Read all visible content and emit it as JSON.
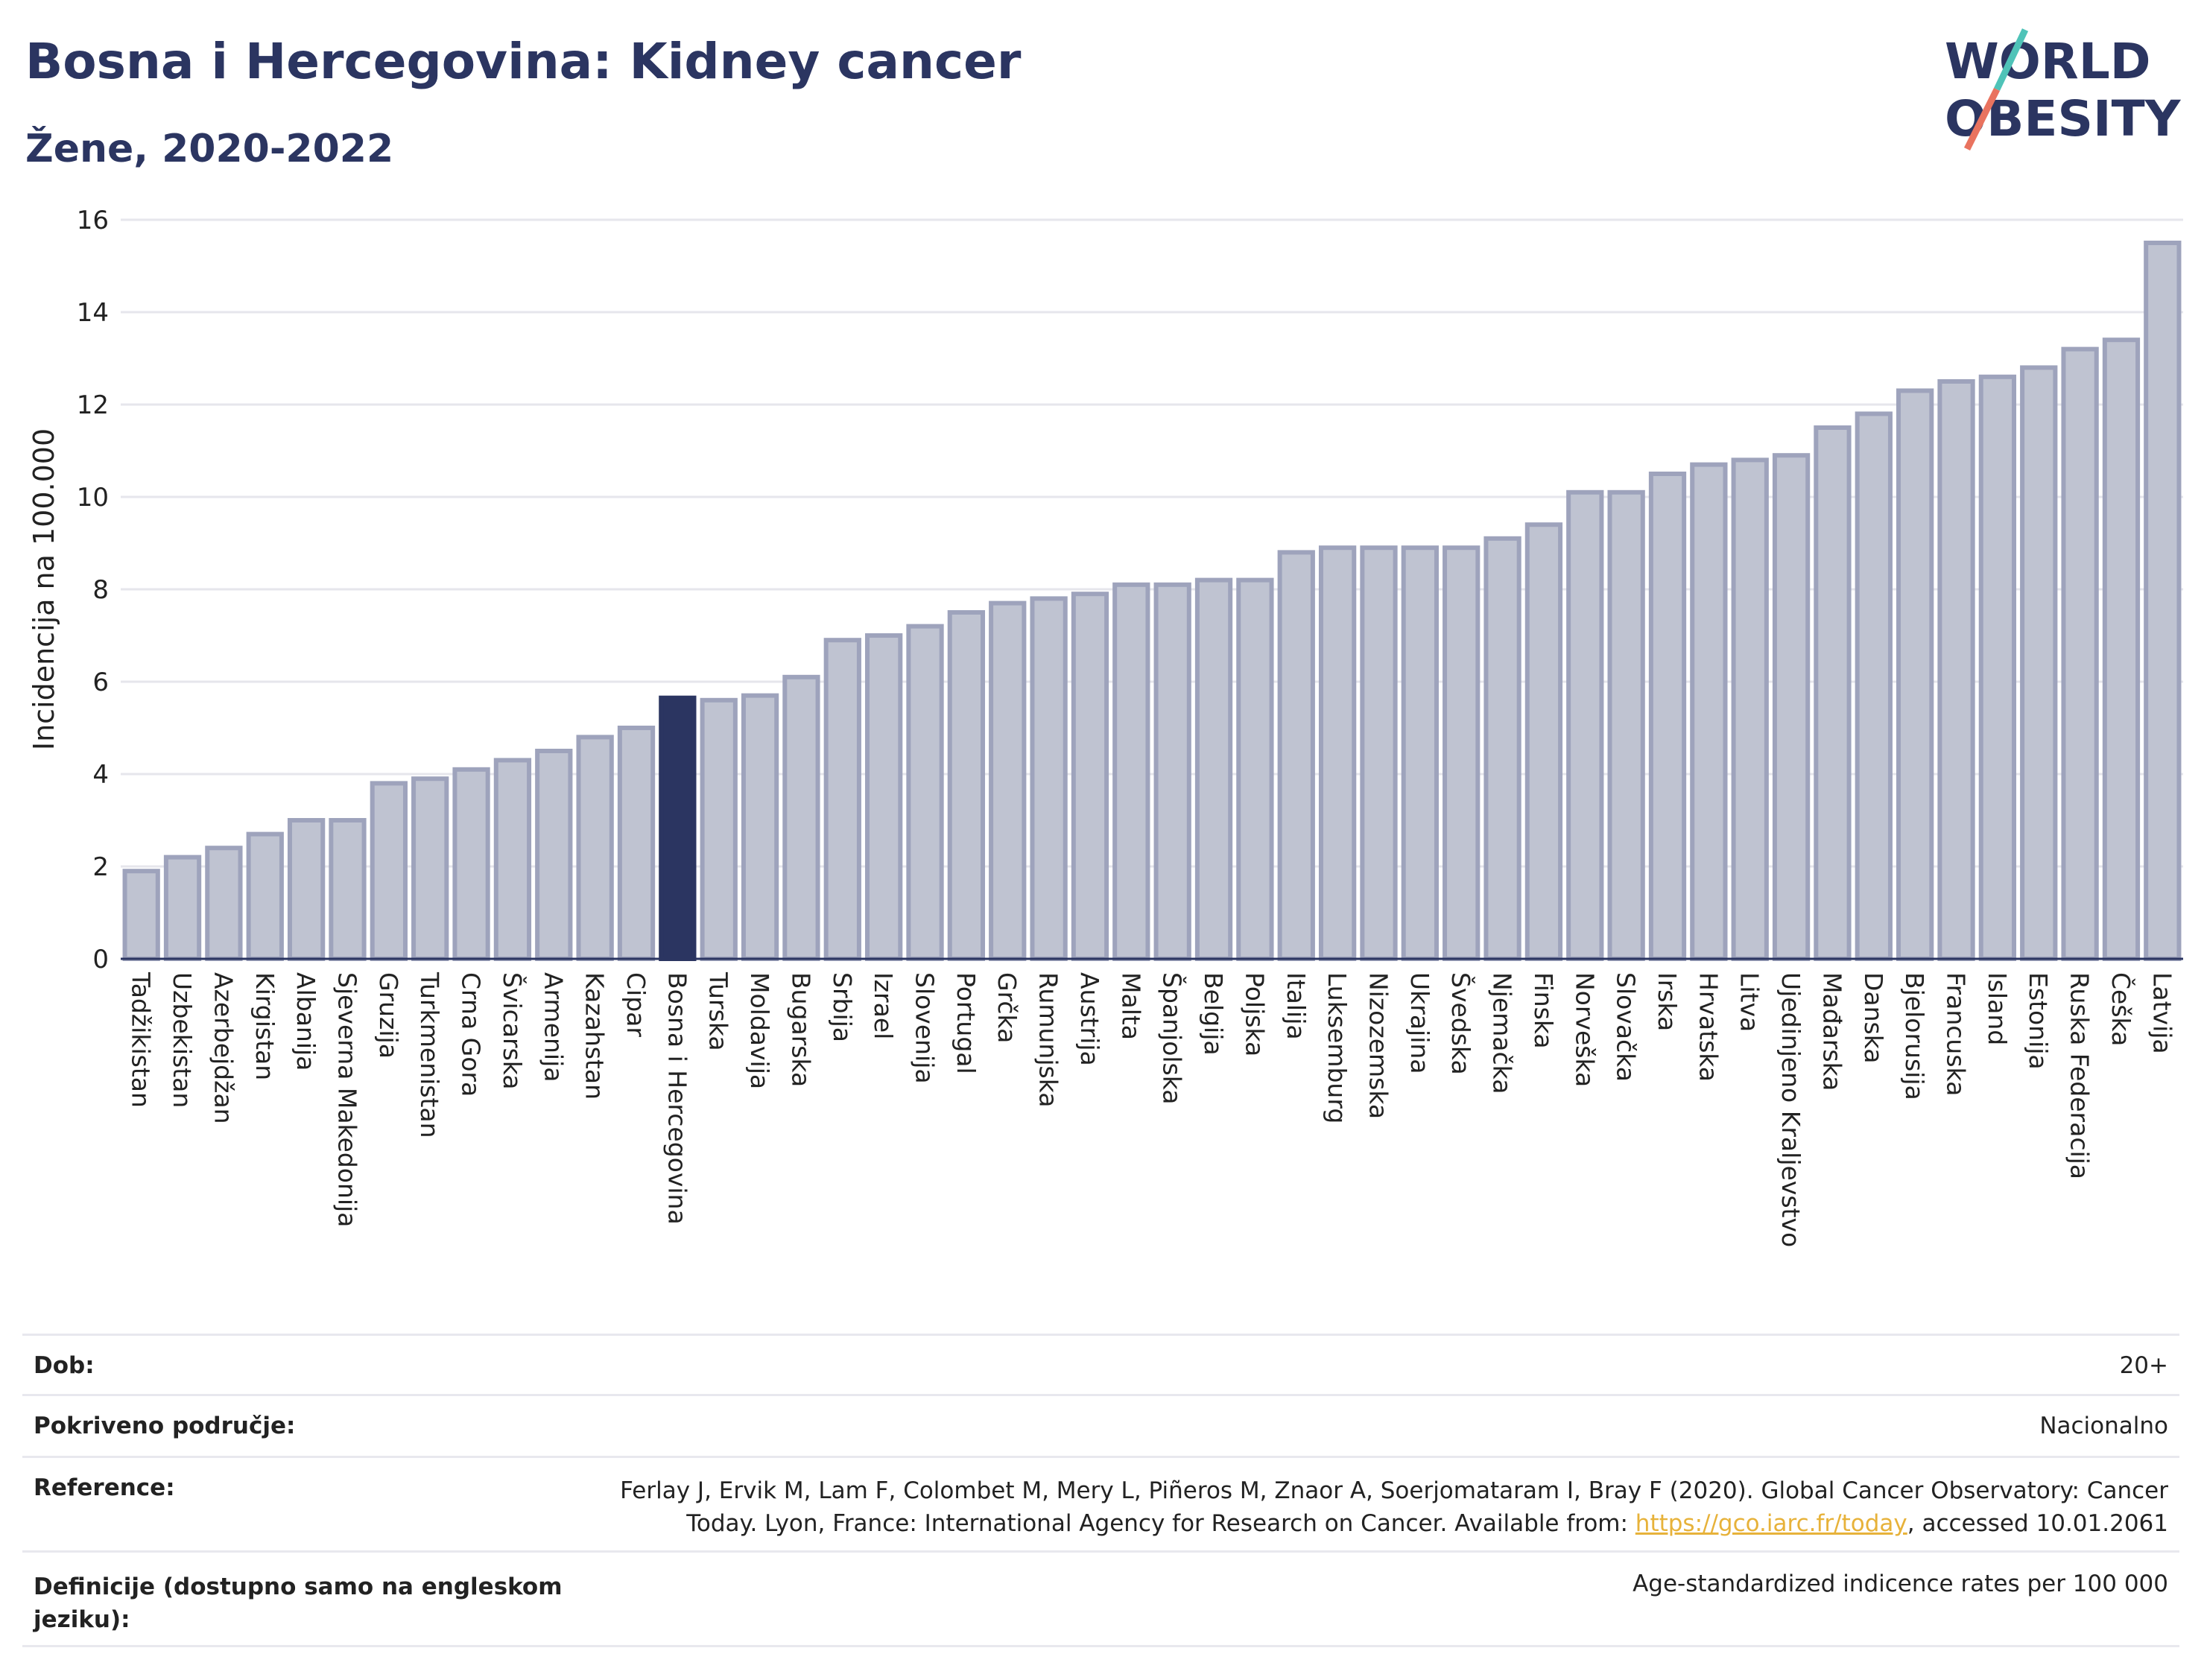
{
  "header": {
    "title": "Bosna i Hercegovina: Kidney cancer",
    "subtitle": "Žene, 2020-2022"
  },
  "logo": {
    "line1": "WORLD",
    "line2": "OBESITY",
    "accent_colors": [
      "#4fc3b8",
      "#e9735f"
    ]
  },
  "colors": {
    "bar": "#bfc3d1",
    "bar_border": "#9ea3bc",
    "highlight": "#2b3561",
    "grid": "#e6e6ec"
  },
  "chart_data": {
    "type": "bar",
    "title": "Bosna i Hercegovina: Kidney cancer",
    "subtitle": "Žene, 2020-2022",
    "xlabel": "",
    "ylabel": "Incidencija na 100.000",
    "ylim": [
      0,
      16
    ],
    "yticks": [
      0,
      2,
      4,
      6,
      8,
      10,
      12,
      14,
      16
    ],
    "grid": true,
    "highlight": "Bosna i Hercegovina",
    "categories": [
      "Tadžikistan",
      "Uzbekistan",
      "Azerbejdžan",
      "Kirgistan",
      "Albanija",
      "Sjeverna Makedonija",
      "Gruzija",
      "Turkmenistan",
      "Crna Gora",
      "Švicarska",
      "Armenija",
      "Kazahstan",
      "Cipar",
      "Bosna i Hercegovina",
      "Turska",
      "Moldavija",
      "Bugarska",
      "Srbija",
      "Izrael",
      "Slovenija",
      "Portugal",
      "Grčka",
      "Rumunjska",
      "Austrija",
      "Malta",
      "Španjolska",
      "Belgija",
      "Poljska",
      "Italija",
      "Luksemburg",
      "Nizozemska",
      "Ukrajina",
      "Švedska",
      "Njemačka",
      "Finska",
      "Norveška",
      "Slovačka",
      "Irska",
      "Hrvatska",
      "Litva",
      "Ujedinjeno Kraljevstvo",
      "Mađarska",
      "Danska",
      "Bjelorusija",
      "Francuska",
      "Island",
      "Estonija",
      "Ruska Federacija",
      "Češka",
      "Latvija"
    ],
    "values": [
      1.9,
      2.2,
      2.4,
      2.7,
      3.0,
      3.0,
      3.8,
      3.9,
      4.1,
      4.3,
      4.5,
      4.8,
      5.0,
      5.65,
      5.6,
      5.7,
      6.1,
      6.9,
      7.0,
      7.2,
      7.5,
      7.7,
      7.8,
      7.9,
      8.1,
      8.1,
      8.2,
      8.2,
      8.8,
      8.9,
      8.9,
      8.9,
      8.9,
      9.1,
      9.4,
      10.1,
      10.1,
      10.5,
      10.7,
      10.8,
      10.9,
      11.5,
      11.8,
      12.3,
      12.5,
      12.6,
      12.8,
      13.2,
      13.4,
      15.5
    ]
  },
  "info": [
    {
      "label": "Dob:",
      "value": "20+"
    },
    {
      "label": "Pokriveno područje:",
      "value": "Nacionalno"
    },
    {
      "label": "Reference:",
      "value_pre": "Ferlay J, Ervik M, Lam F, Colombet M, Mery L, Piñeros M, Znaor A, Soerjomataram I, Bray F (2020). Global Cancer Observatory: Cancer Today. Lyon, France: International Agency for Research on Cancer. Available from: ",
      "link": "https://gco.iarc.fr/today",
      "value_post": ", accessed 10.01.2061"
    },
    {
      "label": "Definicije (dostupno samo na engleskom jeziku):",
      "value": "Age-standardized indicence rates per 100 000"
    }
  ]
}
